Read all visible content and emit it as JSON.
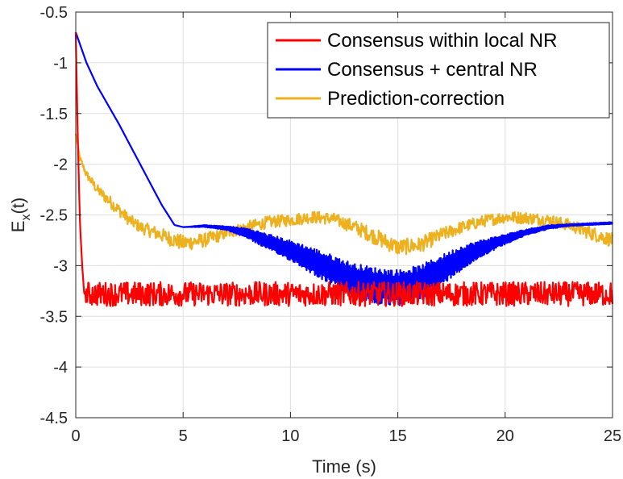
{
  "chart_data": {
    "type": "line",
    "title": "",
    "xlabel": "Time (s)",
    "ylabel_main": "E",
    "ylabel_sub": "x",
    "ylabel_tail": "(t)",
    "xlim": [
      0,
      25
    ],
    "ylim": [
      -4.5,
      -0.5
    ],
    "xticks": [
      0,
      5,
      10,
      15,
      20,
      25
    ],
    "xtick_labels": [
      "0",
      "5",
      "10",
      "15",
      "20",
      "25"
    ],
    "yticks": [
      -0.5,
      -1,
      -1.5,
      -2,
      -2.5,
      -3,
      -3.5,
      -4,
      -4.5
    ],
    "ytick_labels": [
      "-0.5",
      "-1",
      "-1.5",
      "-2",
      "-2.5",
      "-3",
      "-3.5",
      "-4",
      "-4.5"
    ],
    "grid": true,
    "legend_position": "top-right",
    "series": [
      {
        "name": "Consensus within local NR",
        "color": "#ff0000",
        "x": [
          0,
          0.1,
          0.2,
          0.3,
          0.4,
          0.5,
          2,
          5,
          10,
          15,
          20,
          25
        ],
        "y": [
          -0.7,
          -1.8,
          -2.6,
          -3.0,
          -3.3,
          -3.28,
          -3.28,
          -3.28,
          -3.28,
          -3.28,
          -3.28,
          -3.28
        ],
        "noise": [
          0,
          0,
          0,
          0,
          0,
          0.12,
          0.12,
          0.12,
          0.12,
          0.12,
          0.12,
          0.12
        ]
      },
      {
        "name": "Consensus + central NR",
        "color": "#0000ff",
        "x": [
          0,
          0.5,
          1,
          2,
          3,
          4,
          4.6,
          5,
          6,
          7,
          8,
          9,
          10,
          11,
          12,
          13,
          14,
          15,
          16,
          17,
          18,
          19,
          20,
          21,
          22,
          23,
          24,
          25
        ],
        "y": [
          -0.7,
          -1.0,
          -1.23,
          -1.6,
          -2.0,
          -2.4,
          -2.6,
          -2.62,
          -2.61,
          -2.63,
          -2.68,
          -2.77,
          -2.85,
          -2.95,
          -3.05,
          -3.15,
          -3.2,
          -3.22,
          -3.17,
          -3.05,
          -2.92,
          -2.82,
          -2.74,
          -2.67,
          -2.62,
          -2.6,
          -2.59,
          -2.58
        ],
        "noise": [
          0,
          0,
          0,
          0,
          0,
          0,
          0,
          0,
          0.01,
          0.02,
          0.05,
          0.08,
          0.1,
          0.13,
          0.15,
          0.17,
          0.18,
          0.18,
          0.17,
          0.15,
          0.12,
          0.08,
          0.05,
          0.03,
          0.02,
          0.01,
          0.01,
          0.01
        ]
      },
      {
        "name": "Prediction-correction",
        "color": "#edb120",
        "x": [
          0,
          0.2,
          0.5,
          1,
          1.5,
          2,
          2.5,
          3,
          4,
          5,
          6,
          7,
          8,
          9,
          10,
          11,
          12,
          13,
          14,
          15,
          16,
          17,
          18,
          19,
          20,
          21,
          22,
          23,
          24,
          25
        ],
        "y": [
          -1.7,
          -1.95,
          -2.1,
          -2.25,
          -2.35,
          -2.45,
          -2.55,
          -2.62,
          -2.7,
          -2.78,
          -2.75,
          -2.68,
          -2.62,
          -2.57,
          -2.55,
          -2.52,
          -2.54,
          -2.62,
          -2.72,
          -2.82,
          -2.8,
          -2.7,
          -2.62,
          -2.56,
          -2.52,
          -2.53,
          -2.55,
          -2.6,
          -2.68,
          -2.75
        ],
        "noise": [
          0,
          0.03,
          0.04,
          0.05,
          0.06,
          0.06,
          0.06,
          0.06,
          0.07,
          0.08,
          0.07,
          0.06,
          0.06,
          0.06,
          0.06,
          0.06,
          0.06,
          0.07,
          0.08,
          0.08,
          0.08,
          0.07,
          0.06,
          0.06,
          0.06,
          0.06,
          0.06,
          0.06,
          0.07,
          0.07
        ]
      }
    ]
  }
}
